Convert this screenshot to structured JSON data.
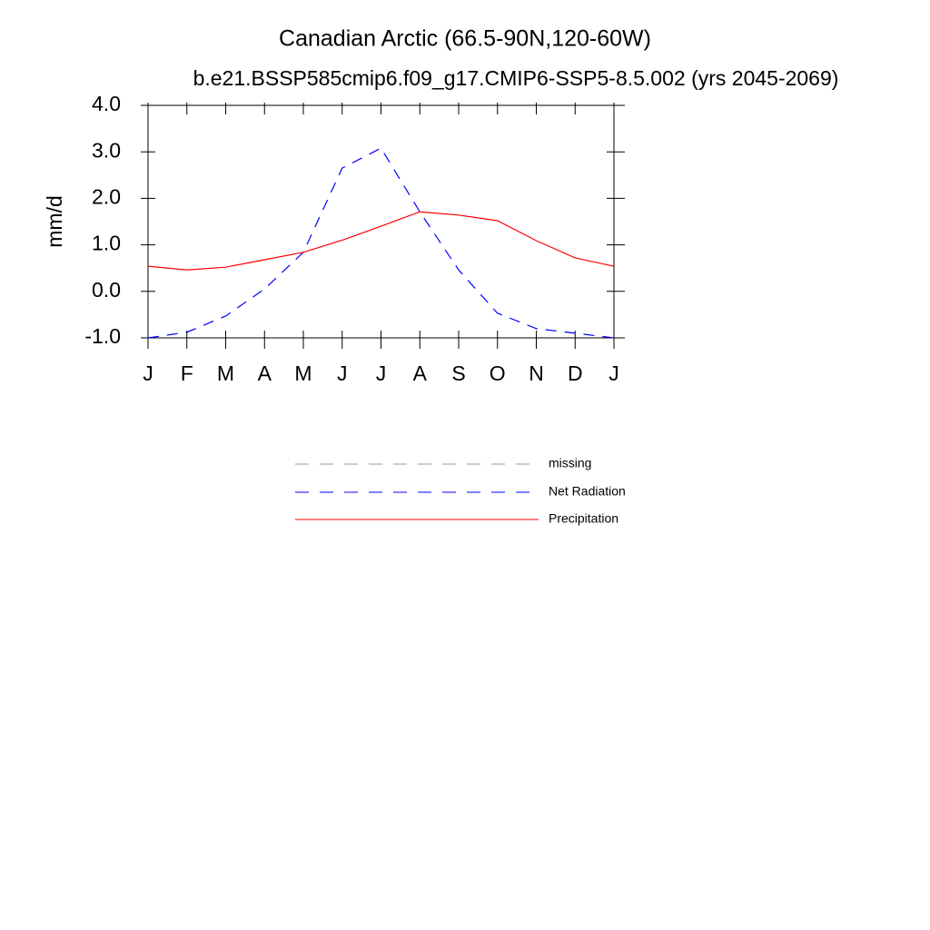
{
  "chart_data": {
    "type": "line",
    "title": "Canadian Arctic (66.5-90N,120-60W)",
    "subtitle": "b.e21.BSSP585cmip6.f09_g17.CMIP6-SSP5-8.5.002 (yrs 2045-2069)",
    "y_label": "mm/d",
    "categories": [
      "J",
      "F",
      "M",
      "A",
      "M",
      "J",
      "J",
      "A",
      "S",
      "O",
      "N",
      "D",
      "J"
    ],
    "series": [
      {
        "name": "missing",
        "color": "#999999",
        "dash": true,
        "values": [
          null,
          null,
          null,
          null,
          null,
          null,
          null,
          null,
          null,
          null,
          null,
          null,
          null
        ]
      },
      {
        "name": "Net Radiation",
        "color": "#0000ff",
        "dash": true,
        "values": [
          -1.0,
          -0.88,
          -0.53,
          0.05,
          0.84,
          2.65,
          3.08,
          1.71,
          0.46,
          -0.47,
          -0.8,
          -0.9,
          -1.0
        ]
      },
      {
        "name": "Precipitation",
        "color": "#ff0000",
        "dash": false,
        "values": [
          0.54,
          0.46,
          0.52,
          0.68,
          0.84,
          1.1,
          1.4,
          1.71,
          1.64,
          1.52,
          1.09,
          0.72,
          0.54
        ]
      }
    ],
    "ylim": [
      -1,
      4
    ],
    "yticks": [
      {
        "value": -1,
        "label": "-1.0"
      },
      {
        "value": 0,
        "label": "0.0"
      },
      {
        "value": 1,
        "label": "1.0"
      },
      {
        "value": 2,
        "label": "2.0"
      },
      {
        "value": 3,
        "label": "3.0"
      },
      {
        "value": 4,
        "label": "4.0"
      }
    ],
    "grid": false
  }
}
